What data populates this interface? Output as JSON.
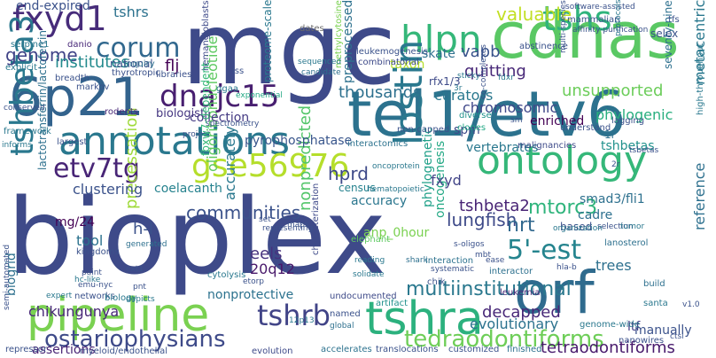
{
  "title": "",
  "words": [
    {
      "text": "bioplex",
      "color": "#3e4a89"
    },
    {
      "text": "mgc",
      "color": "#3e4a89"
    },
    {
      "text": "cdnas",
      "color": "#5ac864"
    },
    {
      "text": "tel1/etv6",
      "color": "#2c728e"
    },
    {
      "text": "pipeline",
      "color": "#7ad151"
    },
    {
      "text": "orf",
      "color": "#2f6b8e"
    },
    {
      "text": "annotations",
      "color": "#2a788e"
    },
    {
      "text": "ontology",
      "color": "#35b779"
    },
    {
      "text": "6p21",
      "color": "#33638d"
    },
    {
      "text": "tshra",
      "color": "#2cb17e"
    },
    {
      "text": "fxyd1",
      "color": "#472c7a"
    },
    {
      "text": "hlpn",
      "color": "#35b779"
    },
    {
      "text": "tshs",
      "color": "#2fb47c"
    },
    {
      "text": "corum",
      "color": "#31688e"
    },
    {
      "text": "dnajc15",
      "color": "#481f70"
    },
    {
      "text": "etv7tg",
      "color": "#482576"
    },
    {
      "text": "gse56976",
      "color": "#b5de2b"
    },
    {
      "text": "lostin",
      "color": "#2a788e"
    },
    {
      "text": "tshbeta3",
      "color": "#2a788e"
    },
    {
      "text": "tshrb",
      "color": "#414487"
    },
    {
      "text": "5'-est",
      "color": "#25848e"
    },
    {
      "text": "ostariophysians",
      "color": "#3e4a89"
    },
    {
      "text": "tedraodontiforms",
      "color": "#6ece58"
    },
    {
      "text": "tetraodontiforms",
      "color": "#481a6c"
    },
    {
      "text": "multiinstitutional",
      "color": "#2a788e"
    },
    {
      "text": "chikungunya",
      "color": "#482878"
    },
    {
      "text": "communities",
      "color": "#3b528b"
    },
    {
      "text": "precessation",
      "color": "#9fda3a"
    },
    {
      "text": "nonpredicted",
      "color": "#52c569"
    },
    {
      "text": "mtorc3",
      "color": "#2fb47c"
    },
    {
      "text": "tshbeta2",
      "color": "#482475"
    },
    {
      "text": "lungfish",
      "color": "#3e4a89"
    },
    {
      "text": "phylogenetic",
      "color": "#1fa088"
    },
    {
      "text": "oncogenesis",
      "color": "#22a884"
    },
    {
      "text": "genome",
      "color": "#404387"
    },
    {
      "text": "institutes",
      "color": "#238a8d"
    },
    {
      "text": "thousands",
      "color": "#2d708e"
    },
    {
      "text": "preprocessed",
      "color": "#2d718e"
    },
    {
      "text": "valuable",
      "color": "#c2df23"
    },
    {
      "text": "vapb",
      "color": "#3a548c"
    },
    {
      "text": "quitting",
      "color": "#482878"
    },
    {
      "text": "chromosomic",
      "color": "#3f4889"
    },
    {
      "text": "unsupported",
      "color": "#6ccd5a"
    },
    {
      "text": "phylogenic",
      "color": "#29af7f"
    },
    {
      "text": "metacentric",
      "color": "#2a788e"
    },
    {
      "text": "reference",
      "color": "#2d708e"
    },
    {
      "text": "nrt",
      "color": "#31688e"
    },
    {
      "text": "hprd",
      "color": "#3e4a89"
    },
    {
      "text": "fxyd",
      "color": "#414487"
    },
    {
      "text": "clustering",
      "color": "#3b528b"
    },
    {
      "text": "h-l",
      "color": "#3b528b"
    },
    {
      "text": "mg/24",
      "color": "#440154"
    },
    {
      "text": "tool",
      "color": "#2c728e"
    },
    {
      "text": "eels",
      "color": "#46327e"
    },
    {
      "text": "20q12",
      "color": "#48186a"
    },
    {
      "text": "decapped",
      "color": "#482878"
    },
    {
      "text": "evolutionary",
      "color": "#2c728e"
    },
    {
      "text": "trees",
      "color": "#2d708e"
    },
    {
      "text": "ltf",
      "color": "#433e85"
    },
    {
      "text": "manually",
      "color": "#3b528b"
    },
    {
      "text": "biogrid",
      "color": "#2d708e"
    },
    {
      "text": "assertions",
      "color": "#482475"
    },
    {
      "text": "oligoribonucleotide",
      "color": "#5ec962"
    },
    {
      "text": "accurately",
      "color": "#2a788e"
    },
    {
      "text": "pyrophosphatase",
      "color": "#39568c"
    },
    {
      "text": "collection",
      "color": "#443a83"
    },
    {
      "text": "biologist",
      "color": "#453781"
    },
    {
      "text": "accuracy",
      "color": "#2a768e"
    },
    {
      "text": "census",
      "color": "#26828e"
    },
    {
      "text": "coelacanth",
      "color": "#26828e"
    },
    {
      "text": "nonprotective",
      "color": "#2c728e"
    },
    {
      "text": "curators",
      "color": "#2a788e"
    },
    {
      "text": "spm",
      "color": "#3e4a89"
    },
    {
      "text": "rfx1/3",
      "color": "#3e4a89"
    },
    {
      "text": "enriched",
      "color": "#440154"
    },
    {
      "text": "1r",
      "color": "#2d708e"
    },
    {
      "text": "tshbetas",
      "color": "#21918c"
    },
    {
      "text": "vertebrates",
      "color": "#2a788e"
    },
    {
      "text": "cadre",
      "color": "#2d708e"
    },
    {
      "text": "smad3/fli1",
      "color": "#2d708e"
    },
    {
      "text": "based",
      "color": "#3b528b"
    },
    {
      "text": "anp_0hour",
      "color": "#7ad151"
    },
    {
      "text": "end-expired",
      "color": "#3b528b"
    },
    {
      "text": "tshrs",
      "color": "#2c728e"
    },
    {
      "text": "flj",
      "color": "#440154"
    },
    {
      "text": "national",
      "color": "#3b528b"
    },
    {
      "text": "thyrotropic",
      "color": "#3b528b"
    },
    {
      "text": "taxon",
      "color": "#b5de2b"
    },
    {
      "text": "skate",
      "color": "#2d708e"
    },
    {
      "text": "leukemogenesis",
      "color": "#3b528b"
    },
    {
      "text": "combinatorial",
      "color": "#3e4a89"
    },
    {
      "text": "seventy-nine",
      "color": "#2d708e"
    },
    {
      "text": "selex",
      "color": "#3b528b"
    },
    {
      "text": "dates",
      "color": "#6b6b6b"
    },
    {
      "text": "proteome-scale",
      "color": "#2a788e"
    },
    {
      "text": "hemangioblasts",
      "color": "#3e4a89"
    },
    {
      "text": "methylcytosine",
      "color": "#7ad151"
    },
    {
      "text": "interactomics",
      "color": "#2c728e"
    },
    {
      "text": "non-capped",
      "color": "#3b528b"
    },
    {
      "text": "diverse",
      "color": "#21918c"
    },
    {
      "text": "clones",
      "color": "#22a884"
    },
    {
      "text": "understand",
      "color": "#3b528b"
    },
    {
      "text": "lagging",
      "color": "#3b528b"
    },
    {
      "text": "malignancies",
      "color": "#3e4a89"
    },
    {
      "text": "high-throughput",
      "color": "#2a788e"
    },
    {
      "text": "leukemia",
      "color": "#482878"
    },
    {
      "text": "lanosterol",
      "color": "#2d708e"
    },
    {
      "text": "elephant",
      "color": "#5ec962"
    },
    {
      "text": "cytolysis",
      "color": "#2a788e"
    },
    {
      "text": "kingdoms",
      "color": "#3b528b"
    },
    {
      "text": "characterization",
      "color": "#3e4a89"
    },
    {
      "text": "interactor",
      "color": "#2d708e"
    },
    {
      "text": "networks",
      "color": "#3b528b"
    },
    {
      "text": "biology",
      "color": "#2a788e"
    },
    {
      "text": "santa",
      "color": "#2a788e"
    },
    {
      "text": "build",
      "color": "#2d708e"
    },
    {
      "text": "repressor",
      "color": "#3b528b"
    },
    {
      "text": "myeloid/endothelial",
      "color": "#3b528b"
    },
    {
      "text": "evolution",
      "color": "#3e4a89"
    },
    {
      "text": "accelerates",
      "color": "#2c728e"
    },
    {
      "text": "translocations",
      "color": "#3b528b"
    },
    {
      "text": "customized",
      "color": "#3b528b"
    },
    {
      "text": "finished",
      "color": "#2d708e"
    },
    {
      "text": "genome-wide",
      "color": "#2a788e"
    },
    {
      "text": "nanowires",
      "color": "#3b528b"
    },
    {
      "text": "interaction",
      "color": "#2c728e"
    },
    {
      "text": "undocumented",
      "color": "#3e4a89"
    },
    {
      "text": "named",
      "color": "#3b528b"
    },
    {
      "text": "artifact",
      "color": "#21918c"
    },
    {
      "text": "chik",
      "color": "#3b528b"
    },
    {
      "text": "lactotransferrin/lactoferrin",
      "color": "#2d708e"
    },
    {
      "text": "serpine1",
      "color": "#2a788e"
    },
    {
      "text": "explicit",
      "color": "#2a788e"
    },
    {
      "text": "breadth",
      "color": "#3b528b"
    },
    {
      "text": "rodents",
      "color": "#482878"
    },
    {
      "text": "framework",
      "color": "#2a788e"
    },
    {
      "text": "largest",
      "color": "#3b528b"
    },
    {
      "text": "lss",
      "color": "#3b528b"
    },
    {
      "text": "markov",
      "color": "#3b528b"
    },
    {
      "text": "inquiry",
      "color": "#2d708e"
    },
    {
      "text": "libraries",
      "color": "#3b528b"
    },
    {
      "text": "danio",
      "color": "#482878"
    },
    {
      "text": "ggaa",
      "color": "#2a788e"
    },
    {
      "text": "exponential",
      "color": "#22a884"
    },
    {
      "text": "spectrometry",
      "color": "#3b528b"
    },
    {
      "text": "candidate",
      "color": "#2d708e"
    },
    {
      "text": "sequenced",
      "color": "#2a788e"
    },
    {
      "text": "abstinence",
      "color": "#3b528b"
    },
    {
      "text": "mammalian",
      "color": "#3b528b"
    },
    {
      "text": "affinity-purification",
      "color": "#3b528b"
    },
    {
      "text": "software-assisted",
      "color": "#3b528b"
    },
    {
      "text": "multi-species",
      "color": "#3b528b"
    },
    {
      "text": "protocols",
      "color": "#2a788e"
    },
    {
      "text": "tfs",
      "color": "#3b528b"
    },
    {
      "text": "sticky",
      "color": "#2a788e"
    },
    {
      "text": "hematopoietic",
      "color": "#2a788e"
    },
    {
      "text": "oncoprotein",
      "color": "#2a788e"
    },
    {
      "text": "shark",
      "color": "#2d708e"
    },
    {
      "text": "reading",
      "color": "#2a788e"
    },
    {
      "text": "ease",
      "color": "#3b528b"
    },
    {
      "text": "mbt",
      "color": "#3b528b"
    },
    {
      "text": "hla-b",
      "color": "#3b528b"
    },
    {
      "text": "selection",
      "color": "#3b528b"
    },
    {
      "text": "organization",
      "color": "#2a788e"
    },
    {
      "text": "tumor",
      "color": "#2a788e"
    },
    {
      "text": "paint",
      "color": "#3b528b"
    },
    {
      "text": "emu-nyc",
      "color": "#3b528b"
    },
    {
      "text": "hc-like",
      "color": "#2a788e"
    },
    {
      "text": "ext1",
      "color": "#3b528b"
    },
    {
      "text": "pnt",
      "color": "#3b528b"
    },
    {
      "text": "depicts",
      "color": "#2a788e"
    },
    {
      "text": "generated",
      "color": "#2d708e"
    },
    {
      "text": "set",
      "color": "#3b528b"
    },
    {
      "text": "expert",
      "color": "#2a788e"
    },
    {
      "text": "semi-automated",
      "color": "#3b528b"
    },
    {
      "text": "informs",
      "color": "#2a788e"
    },
    {
      "text": "conserved",
      "color": "#3b528b"
    },
    {
      "text": "global",
      "color": "#2d708e"
    },
    {
      "text": "12p13",
      "color": "#2a788e"
    },
    {
      "text": "2r",
      "color": "#3b528b"
    },
    {
      "text": "ctsl",
      "color": "#3b528b"
    },
    {
      "text": "v1.0",
      "color": "#3b528b"
    },
    {
      "text": "s-oligos",
      "color": "#3b528b"
    },
    {
      "text": "etorp",
      "color": "#3b528b"
    },
    {
      "text": "solidate",
      "color": "#2a788e"
    },
    {
      "text": "systematic",
      "color": "#3b528b"
    },
    {
      "text": "3r",
      "color": "#2a788e"
    },
    {
      "text": "project",
      "color": "#3b528b"
    },
    {
      "text": "fdxr",
      "color": "#2a788e"
    },
    {
      "text": "co-complexes",
      "color": "#3b528b"
    },
    {
      "text": "maps",
      "color": "#3b528b"
    },
    {
      "text": "sm",
      "color": "#3b528b"
    },
    {
      "text": "tsbetas",
      "color": "#3b528b"
    },
    {
      "text": "fbxw7-dependent",
      "color": "#35b779"
    },
    {
      "text": "representing",
      "color": "#3b528b"
    }
  ]
}
